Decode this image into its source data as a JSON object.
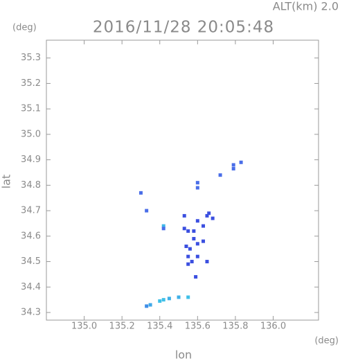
{
  "chart_data": {
    "type": "scatter",
    "title": "2016/11/28 20:05:48",
    "subtitle": "ALT(km) 2.0",
    "y_unit": "(deg)",
    "x_unit": "(deg)",
    "xlabel": "lon",
    "ylabel": "lat",
    "xlim": [
      134.8,
      136.24
    ],
    "ylim": [
      34.27,
      35.37
    ],
    "xticks": [
      {
        "value": 135.0,
        "label": "135.0"
      },
      135.2,
      135.4,
      135.6,
      135.8,
      {
        "value": 136.0,
        "label": "136.0"
      }
    ],
    "yticks": [
      34.3,
      34.4,
      34.5,
      34.6,
      34.7,
      34.8,
      34.9,
      {
        "value": 35.0,
        "label": "35.0"
      },
      35.1,
      35.2,
      35.3
    ],
    "x": [
      135.79,
      135.83,
      135.79,
      135.6,
      135.6,
      135.3,
      135.72,
      135.33,
      135.42,
      135.42,
      135.53,
      135.53,
      135.55,
      135.6,
      135.65,
      135.66,
      135.68,
      135.63,
      135.58,
      135.6,
      135.56,
      135.54,
      135.55,
      135.57,
      135.55,
      135.6,
      135.65,
      135.59,
      135.63,
      135.58,
      135.33,
      135.35,
      135.4,
      135.42,
      135.45,
      135.5,
      135.55
    ],
    "y": [
      34.88,
      34.89,
      34.865,
      34.81,
      34.79,
      34.77,
      34.84,
      34.7,
      34.64,
      34.63,
      34.68,
      34.63,
      34.62,
      34.66,
      34.68,
      34.69,
      34.67,
      34.64,
      34.59,
      34.57,
      34.55,
      34.56,
      34.52,
      34.5,
      34.49,
      34.52,
      34.5,
      34.44,
      34.58,
      34.62,
      34.325,
      34.33,
      34.345,
      34.35,
      34.355,
      34.36,
      34.36
    ],
    "colors": [
      "#4a6ee8",
      "#4a6ee8",
      "#4a6ee8",
      "#4a6ee8",
      "#4a6ee8",
      "#4a6ee8",
      "#4a6ee8",
      "#4a6ee8",
      "#3fb8e8",
      "#4a6ee8",
      "#3b4fe0",
      "#3b4fe0",
      "#3b4fe0",
      "#3b4fe0",
      "#3b4fe0",
      "#3b4fe0",
      "#3b4fe0",
      "#3b4fe0",
      "#3b4fe0",
      "#3b4fe0",
      "#3b4fe0",
      "#3b4fe0",
      "#3b4fe0",
      "#3b4fe0",
      "#3b4fe0",
      "#3b4fe0",
      "#3b4fe0",
      "#3b4fe0",
      "#3b4fe0",
      "#3b4fe0",
      "#3f8ee8",
      "#3fa8e8",
      "#3fc0e8",
      "#3fc0e8",
      "#3fb0e8",
      "#3fb0e8",
      "#3fc0e8"
    ]
  }
}
